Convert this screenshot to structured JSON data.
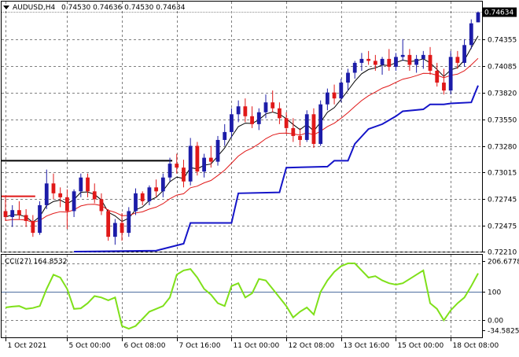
{
  "header": {
    "symbol": "AUDUSD,H4",
    "ohlc": "0.74530 0.74636 0.74530 0.74634"
  },
  "colors": {
    "bull": "#1c1ca8",
    "bear": "#e01818",
    "fast_ma": "#000000",
    "slow_ma": "#e01818",
    "support": "#1414c8",
    "cci": "#7fe01a",
    "grid": "#7f7f7f",
    "ref_level": "#000000"
  },
  "chart_data": [
    {
      "type": "candlestick",
      "ylim": [
        0.7221,
        0.7474
      ],
      "yticks": [
        0.7221,
        0.72475,
        0.72745,
        0.73015,
        0.7328,
        0.7355,
        0.7382,
        0.74085,
        0.74355
      ],
      "ytick_labels": [
        "0.72210",
        "0.72475",
        "0.72745",
        "0.73015",
        "0.73280",
        "0.73550",
        "0.73820",
        "0.74085",
        "0.74355"
      ],
      "current_price": 0.74634,
      "current_price_label": "0.74634",
      "x_labels": [
        "1 Oct 2021",
        "5 Oct 00:00",
        "6 Oct 08:00",
        "7 Oct 16:00",
        "11 Oct 00:00",
        "12 Oct 08:00",
        "13 Oct 16:00",
        "15 Oct 00:00",
        "18 Oct 08:00"
      ],
      "x_label_index": [
        0,
        9,
        17,
        25,
        33,
        41,
        49,
        57,
        65
      ],
      "candles": [
        [
          0.7262,
          0.7276,
          0.7252,
          0.7256
        ],
        [
          0.7256,
          0.7268,
          0.7246,
          0.7263
        ],
        [
          0.7263,
          0.7272,
          0.7254,
          0.7258
        ],
        [
          0.7258,
          0.7264,
          0.7246,
          0.7252
        ],
        [
          0.7252,
          0.7258,
          0.7236,
          0.724
        ],
        [
          0.724,
          0.7272,
          0.7238,
          0.7268
        ],
        [
          0.7268,
          0.7304,
          0.7264,
          0.729
        ],
        [
          0.729,
          0.73,
          0.7274,
          0.728
        ],
        [
          0.728,
          0.7286,
          0.7266,
          0.7276
        ],
        [
          0.7276,
          0.7284,
          0.7244,
          0.7262
        ],
        [
          0.7262,
          0.7284,
          0.7256,
          0.7282
        ],
        [
          0.7282,
          0.73,
          0.7276,
          0.7296
        ],
        [
          0.7296,
          0.73,
          0.7276,
          0.7282
        ],
        [
          0.7282,
          0.729,
          0.727,
          0.7274
        ],
        [
          0.7274,
          0.728,
          0.7258,
          0.7262
        ],
        [
          0.7262,
          0.7264,
          0.7232,
          0.7236
        ],
        [
          0.7236,
          0.7254,
          0.7228,
          0.725
        ],
        [
          0.725,
          0.726,
          0.7232,
          0.724
        ],
        [
          0.724,
          0.7266,
          0.7236,
          0.7262
        ],
        [
          0.7262,
          0.7285,
          0.7258,
          0.728
        ],
        [
          0.728,
          0.7282,
          0.7268,
          0.7272
        ],
        [
          0.7272,
          0.7288,
          0.7268,
          0.7286
        ],
        [
          0.7286,
          0.7294,
          0.7276,
          0.7282
        ],
        [
          0.7282,
          0.73,
          0.7276,
          0.7296
        ],
        [
          0.7296,
          0.7316,
          0.7292,
          0.731
        ],
        [
          0.731,
          0.732,
          0.73,
          0.7306
        ],
        [
          0.7306,
          0.7314,
          0.7286,
          0.7292
        ],
        [
          0.7292,
          0.7336,
          0.7288,
          0.7328
        ],
        [
          0.7328,
          0.7332,
          0.7298,
          0.7302
        ],
        [
          0.7302,
          0.732,
          0.7296,
          0.7316
        ],
        [
          0.7316,
          0.7328,
          0.7306,
          0.7312
        ],
        [
          0.7312,
          0.7338,
          0.7308,
          0.7334
        ],
        [
          0.7334,
          0.735,
          0.7328,
          0.7342
        ],
        [
          0.7342,
          0.7366,
          0.7336,
          0.736
        ],
        [
          0.736,
          0.7374,
          0.7352,
          0.7368
        ],
        [
          0.7368,
          0.7376,
          0.7352,
          0.7358
        ],
        [
          0.7358,
          0.7368,
          0.7346,
          0.735
        ],
        [
          0.735,
          0.7366,
          0.7344,
          0.7362
        ],
        [
          0.7362,
          0.738,
          0.7356,
          0.7372
        ],
        [
          0.7372,
          0.7384,
          0.7362,
          0.7366
        ],
        [
          0.7366,
          0.7372,
          0.735,
          0.7356
        ],
        [
          0.7356,
          0.7362,
          0.734,
          0.7346
        ],
        [
          0.7346,
          0.7356,
          0.7332,
          0.7338
        ],
        [
          0.7338,
          0.7346,
          0.7328,
          0.7334
        ],
        [
          0.7334,
          0.7364,
          0.7332,
          0.736
        ],
        [
          0.736,
          0.7366,
          0.7326,
          0.733
        ],
        [
          0.733,
          0.7374,
          0.7328,
          0.737
        ],
        [
          0.737,
          0.7386,
          0.7364,
          0.7382
        ],
        [
          0.7382,
          0.739,
          0.737,
          0.7376
        ],
        [
          0.7376,
          0.7396,
          0.7372,
          0.7392
        ],
        [
          0.7392,
          0.7406,
          0.7384,
          0.7402
        ],
        [
          0.7402,
          0.7414,
          0.7396,
          0.7412
        ],
        [
          0.7412,
          0.7422,
          0.7404,
          0.7416
        ],
        [
          0.7416,
          0.7424,
          0.741,
          0.7414
        ],
        [
          0.7414,
          0.742,
          0.7404,
          0.741
        ],
        [
          0.741,
          0.7418,
          0.74,
          0.7416
        ],
        [
          0.7416,
          0.7426,
          0.7404,
          0.7408
        ],
        [
          0.7408,
          0.7422,
          0.7404,
          0.7418
        ],
        [
          0.7418,
          0.7436,
          0.7414,
          0.742
        ],
        [
          0.742,
          0.7426,
          0.7404,
          0.741
        ],
        [
          0.741,
          0.742,
          0.7402,
          0.7416
        ],
        [
          0.7416,
          0.7424,
          0.7406,
          0.742
        ],
        [
          0.742,
          0.7428,
          0.74,
          0.7404
        ],
        [
          0.7404,
          0.7412,
          0.7388,
          0.7392
        ],
        [
          0.7392,
          0.7406,
          0.738,
          0.7384
        ],
        [
          0.7384,
          0.7424,
          0.738,
          0.7418
        ],
        [
          0.7418,
          0.7424,
          0.7406,
          0.7412
        ],
        [
          0.7412,
          0.7436,
          0.7408,
          0.743
        ],
        [
          0.743,
          0.7456,
          0.7426,
          0.7452
        ],
        [
          0.7453,
          0.7464,
          0.7453,
          0.7463
        ]
      ],
      "resistance": {
        "from": 0,
        "to": 4,
        "value": 0.7277
      },
      "resistance2": {
        "from": 0,
        "to": 24,
        "value": 0.7313
      },
      "support_steps": [
        [
          10,
          0.7221
        ],
        [
          22,
          0.7222
        ],
        [
          26,
          0.7229
        ],
        [
          27,
          0.725
        ],
        [
          33,
          0.725
        ],
        [
          34,
          0.728
        ],
        [
          40,
          0.7281
        ],
        [
          41,
          0.7306
        ],
        [
          47,
          0.7307
        ],
        [
          48,
          0.7313
        ],
        [
          50,
          0.7313
        ],
        [
          51,
          0.733
        ],
        [
          53,
          0.7345
        ],
        [
          55,
          0.735
        ],
        [
          57,
          0.7358
        ],
        [
          58,
          0.7363
        ],
        [
          61,
          0.7365
        ],
        [
          62,
          0.737
        ],
        [
          64,
          0.737
        ],
        [
          65,
          0.7371
        ],
        [
          68,
          0.7372
        ],
        [
          69,
          0.7389
        ]
      ]
    },
    {
      "type": "line",
      "label": "CCI(27) 164.8532",
      "ylim": [
        -60,
        230
      ],
      "yticks": [
        206.6778,
        100,
        0,
        -34.5825
      ],
      "ytick_labels": [
        "206.6778",
        "100",
        "0.00",
        "-34.5825"
      ],
      "reference_levels": [
        200,
        100,
        0
      ],
      "values": [
        45,
        48,
        50,
        40,
        43,
        50,
        110,
        160,
        150,
        110,
        40,
        42,
        60,
        85,
        80,
        70,
        80,
        -20,
        -30,
        -20,
        5,
        30,
        40,
        50,
        80,
        160,
        175,
        180,
        150,
        110,
        90,
        60,
        50,
        120,
        130,
        80,
        95,
        145,
        140,
        110,
        80,
        50,
        10,
        30,
        45,
        20,
        100,
        140,
        170,
        190,
        200,
        200,
        175,
        150,
        155,
        140,
        130,
        125,
        130,
        145,
        160,
        175,
        60,
        40,
        0,
        35,
        60,
        80,
        120,
        164.85
      ]
    }
  ]
}
